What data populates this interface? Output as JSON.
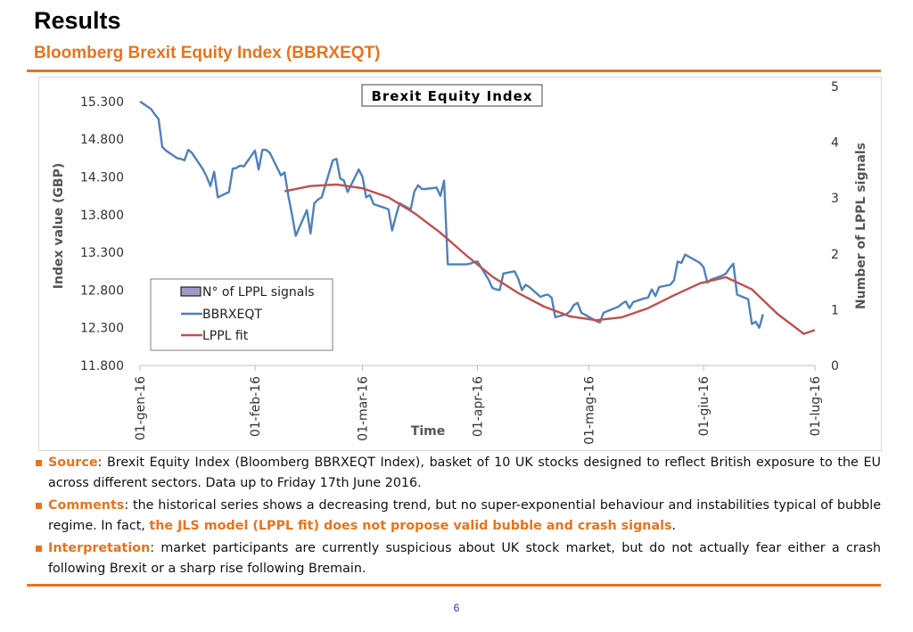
{
  "header": {
    "title": "Results",
    "subtitle": "Bloomberg Brexit Equity Index (BBRXEQT)"
  },
  "colors": {
    "accent": "#E8731D",
    "series_index": "#4F81BD",
    "series_fit": "#C0504D",
    "legend_bar": "#A496C8",
    "page_number": "#1F3D99"
  },
  "chart_data": {
    "type": "line",
    "title": "Brexit Equity Index",
    "xlabel": "Time",
    "ylabel": "Index value (GBP)",
    "y2label": "Number of LPPL signals",
    "x_ticks": [
      "01-gen-16",
      "01-feb-16",
      "01-mar-16",
      "01-apr-16",
      "01-mag-16",
      "01-giu-16",
      "01-lug-16"
    ],
    "ylim": [
      11800,
      15500
    ],
    "y_ticks": [
      "11.800",
      "12.300",
      "12.800",
      "13.300",
      "13.800",
      "14.300",
      "14.800",
      "15.300"
    ],
    "y2lim": [
      0,
      5
    ],
    "y2_ticks": [
      "0",
      "1",
      "2",
      "3",
      "4",
      "5"
    ],
    "legend": [
      "N° of LPPL signals",
      "BBRXEQT",
      "LPPL fit"
    ],
    "legend_position": "center-left",
    "series": [
      {
        "name": "BBRXEQT",
        "x": [
          "2016-01-01",
          "2016-01-04",
          "2016-01-05",
          "2016-01-06",
          "2016-01-07",
          "2016-01-08",
          "2016-01-11",
          "2016-01-12",
          "2016-01-13",
          "2016-01-14",
          "2016-01-15",
          "2016-01-18",
          "2016-01-19",
          "2016-01-20",
          "2016-01-21",
          "2016-01-22",
          "2016-01-25",
          "2016-01-26",
          "2016-01-27",
          "2016-01-28",
          "2016-01-29",
          "2016-02-01",
          "2016-02-02",
          "2016-02-03",
          "2016-02-04",
          "2016-02-05",
          "2016-02-08",
          "2016-02-09",
          "2016-02-10",
          "2016-02-11",
          "2016-02-12",
          "2016-02-15",
          "2016-02-16",
          "2016-02-17",
          "2016-02-18",
          "2016-02-19",
          "2016-02-22",
          "2016-02-23",
          "2016-02-24",
          "2016-02-25",
          "2016-02-26",
          "2016-02-29",
          "2016-03-01",
          "2016-03-02",
          "2016-03-03",
          "2016-03-04",
          "2016-03-07",
          "2016-03-08",
          "2016-03-09",
          "2016-03-10",
          "2016-03-11",
          "2016-03-14",
          "2016-03-15",
          "2016-03-16",
          "2016-03-17",
          "2016-03-18",
          "2016-03-21",
          "2016-03-22",
          "2016-03-23",
          "2016-03-24",
          "2016-03-29",
          "2016-03-30",
          "2016-03-31",
          "2016-04-01",
          "2016-04-04",
          "2016-04-05",
          "2016-04-06",
          "2016-04-07",
          "2016-04-08",
          "2016-04-11",
          "2016-04-12",
          "2016-04-13",
          "2016-04-14",
          "2016-04-15",
          "2016-04-18",
          "2016-04-19",
          "2016-04-20",
          "2016-04-21",
          "2016-04-22",
          "2016-04-25",
          "2016-04-26",
          "2016-04-27",
          "2016-04-28",
          "2016-04-29",
          "2016-05-03",
          "2016-05-04",
          "2016-05-05",
          "2016-05-06",
          "2016-05-09",
          "2016-05-10",
          "2016-05-11",
          "2016-05-12",
          "2016-05-13",
          "2016-05-16",
          "2016-05-17",
          "2016-05-18",
          "2016-05-19",
          "2016-05-20",
          "2016-05-23",
          "2016-05-24",
          "2016-05-25",
          "2016-05-26",
          "2016-05-27",
          "2016-05-31",
          "2016-06-01",
          "2016-06-02",
          "2016-06-03",
          "2016-06-06",
          "2016-06-07",
          "2016-06-08",
          "2016-06-09",
          "2016-06-10",
          "2016-06-13",
          "2016-06-14",
          "2016-06-15",
          "2016-06-16",
          "2016-06-17"
        ],
        "values": [
          15.3,
          15.2,
          15.13,
          15.07,
          14.7,
          14.65,
          14.55,
          14.54,
          14.52,
          14.66,
          14.62,
          14.4,
          14.3,
          14.18,
          14.37,
          14.03,
          14.1,
          14.41,
          14.42,
          14.45,
          14.44,
          14.65,
          14.4,
          14.66,
          14.66,
          14.62,
          14.32,
          14.36,
          14.05,
          13.8,
          13.52,
          13.86,
          13.55,
          13.95,
          14.0,
          14.03,
          14.52,
          14.54,
          14.28,
          14.25,
          14.1,
          14.4,
          14.3,
          14.03,
          14.06,
          13.94,
          13.89,
          13.87,
          13.59,
          13.78,
          13.95,
          13.87,
          14.11,
          14.19,
          14.14,
          14.14,
          14.16,
          14.05,
          14.25,
          13.14,
          13.14,
          13.15,
          13.17,
          13.18,
          12.94,
          12.83,
          12.81,
          12.8,
          13.02,
          13.05,
          12.95,
          12.8,
          12.87,
          12.84,
          12.71,
          12.73,
          12.74,
          12.7,
          12.44,
          12.48,
          12.52,
          12.6,
          12.63,
          12.5,
          12.39,
          12.37,
          12.5,
          12.52,
          12.58,
          12.62,
          12.65,
          12.56,
          12.64,
          12.69,
          12.7,
          12.81,
          12.72,
          12.84,
          12.87,
          12.93,
          13.18,
          13.16,
          13.27,
          13.16,
          13.1,
          12.9,
          12.94,
          12.99,
          13.02,
          13.09,
          13.15,
          12.74,
          12.68,
          12.35,
          12.38,
          12.3,
          12.48
        ]
      },
      {
        "name": "LPPL fit",
        "x": [
          "2016-02-09",
          "2016-02-16",
          "2016-02-23",
          "2016-03-01",
          "2016-03-08",
          "2016-03-15",
          "2016-03-22",
          "2016-03-29",
          "2016-04-05",
          "2016-04-12",
          "2016-04-19",
          "2016-04-26",
          "2016-05-03",
          "2016-05-10",
          "2016-05-17",
          "2016-05-24",
          "2016-05-31",
          "2016-06-07",
          "2016-06-14",
          "2016-06-21",
          "2016-06-28",
          "2016-07-01"
        ],
        "values": [
          14.11,
          14.18,
          14.2,
          14.15,
          14.03,
          13.82,
          13.56,
          13.26,
          12.98,
          12.76,
          12.58,
          12.45,
          12.4,
          12.44,
          12.56,
          12.73,
          12.89,
          12.97,
          12.81,
          12.48,
          12.22,
          12.27
        ]
      }
    ]
  },
  "bullets": [
    {
      "label": "Source",
      "text": ": Brexit Equity Index (Bloomberg BBRXEQT Index), basket of 10 UK stocks designed to reflect British exposure to the EU across different sectors. Data up to Friday 17th June 2016."
    },
    {
      "label": "Comments",
      "text": ": the historical series shows a decreasing trend, but no super-exponential behaviour and instabilities typical of bubble regime. In fact, ",
      "highlight": "the JLS model (LPPL fit) does not propose valid bubble and crash signals",
      "tail": "."
    },
    {
      "label": "Interpretation",
      "text": ": market participants are currently suspicious about UK stock market, but do not actually fear either a crash following Brexit or a sharp rise following Bremain."
    }
  ],
  "footer": {
    "page_number": "6"
  }
}
